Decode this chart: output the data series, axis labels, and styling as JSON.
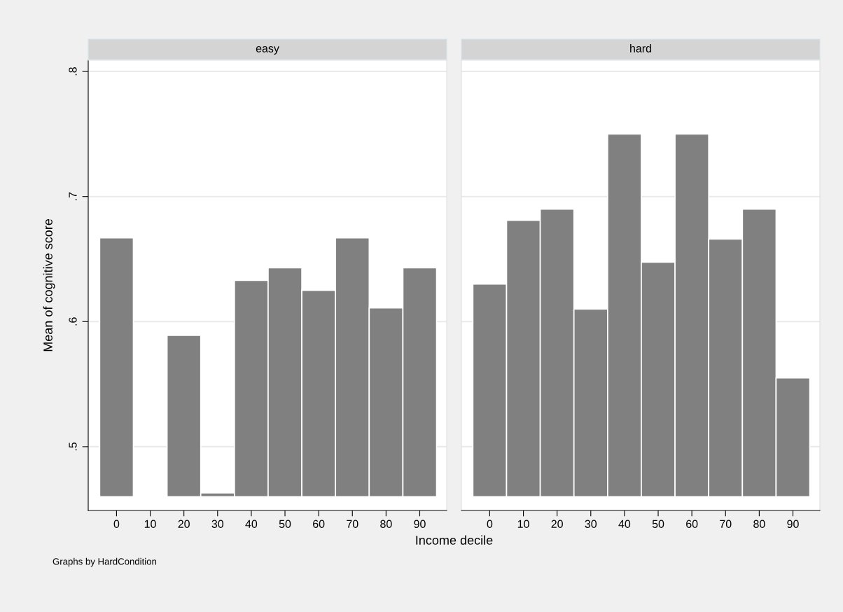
{
  "chart_data": [
    {
      "type": "bar",
      "title": "easy",
      "ylabel": "Mean of cognitive score",
      "xlabel": "Income decile",
      "annotations": [
        "Graphs by HardCondition"
      ],
      "x": [
        0,
        10,
        20,
        30,
        40,
        50,
        60,
        70,
        80,
        90
      ],
      "base": [
        0.46,
        null,
        0.46,
        0.46,
        0.46,
        0.46,
        0.46,
        0.46,
        0.46,
        0.46
      ],
      "values": [
        0.207,
        null,
        0.129,
        0.003,
        0.173,
        0.183,
        0.165,
        0.207,
        0.151,
        0.183
      ],
      "color": "#808080",
      "xlim": [
        -8.4,
        98
      ],
      "xticks": [
        0,
        10,
        20,
        30,
        40,
        50,
        60,
        70,
        80,
        90
      ],
      "ylim": [
        0.449,
        0.809
      ],
      "yticks": [
        {
          "value": 0.5,
          "label": ".5"
        },
        {
          "value": 0.6,
          "label": ".6"
        },
        {
          "value": 0.7,
          "label": ".7"
        },
        {
          "value": 0.8,
          "label": ".8"
        }
      ],
      "grid": "y"
    },
    {
      "type": "bar",
      "title": "hard",
      "x": [
        0,
        10,
        20,
        30,
        40,
        50,
        60,
        70,
        80,
        90
      ],
      "base": [
        0.46,
        0.46,
        0.46,
        0.46,
        0.46,
        0.46,
        0.46,
        0.46,
        0.46,
        0.46
      ],
      "values": [
        0.17,
        0.221,
        0.23,
        0.15,
        0.29,
        0.1875,
        0.29,
        0.206,
        0.23,
        0.095
      ],
      "color": "#808080",
      "xlim": [
        -8.4,
        98
      ],
      "xticks": [
        0,
        10,
        20,
        30,
        40,
        50,
        60,
        70,
        80,
        90
      ],
      "ylim": [
        0.449,
        0.809
      ],
      "yticks": [
        0.5,
        0.6,
        0.7,
        0.8
      ],
      "grid": "y",
      "tick_labels": "x"
    }
  ]
}
